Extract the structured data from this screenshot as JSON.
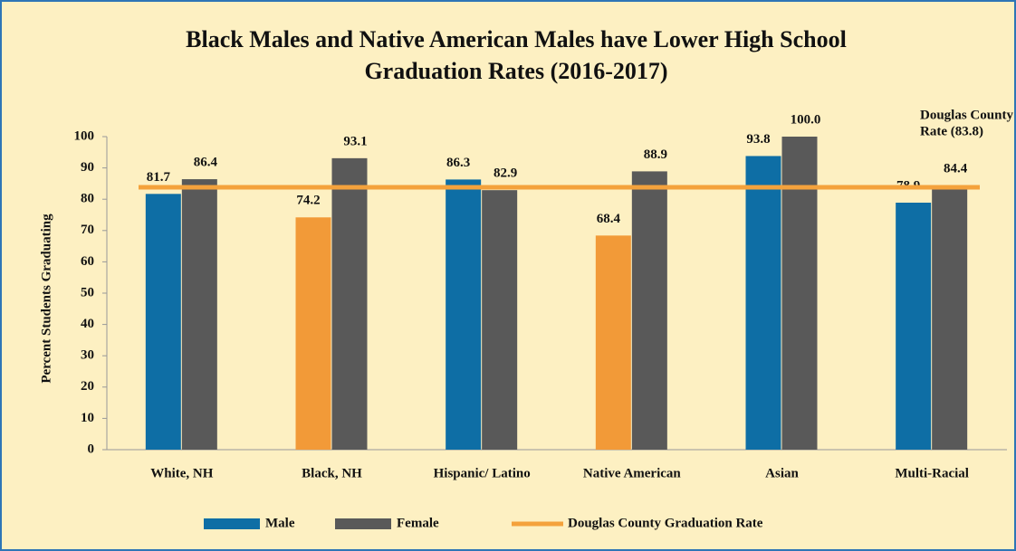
{
  "chart_data": {
    "type": "bar",
    "title": "Black Males and Native American Males have Lower High School Graduation Rates (2016-2017)",
    "y_label": "Percent Students Graduating",
    "categories": [
      "White, NH",
      "Black, NH",
      "Hispanic/ Latino",
      "Native American",
      "Asian",
      "Multi-Racial"
    ],
    "series": [
      {
        "name": "Male",
        "color": "#0e6ea5",
        "point_colors": [
          "#0e6ea5",
          "#f29a38",
          "#0e6ea5",
          "#f29a38",
          "#0e6ea5",
          "#0e6ea5"
        ],
        "values": [
          81.7,
          74.2,
          86.3,
          68.4,
          93.8,
          78.9
        ]
      },
      {
        "name": "Female",
        "color": "#595959",
        "values": [
          86.4,
          93.1,
          82.9,
          88.9,
          100,
          84.4
        ],
        "value_labels": [
          "86.4",
          "93.1",
          "82.9",
          "88.9",
          "100.0",
          "84.4"
        ]
      }
    ],
    "reference_line": {
      "name": "Douglas County Graduation Rate",
      "value": 83.8,
      "color": "#f4a23c"
    },
    "annotation": [
      "Douglas County",
      "Rate (83.8)"
    ],
    "ylim": [
      0,
      100
    ],
    "yticks": [
      0,
      10,
      20,
      30,
      40,
      50,
      60,
      70,
      80,
      90,
      100
    ]
  }
}
